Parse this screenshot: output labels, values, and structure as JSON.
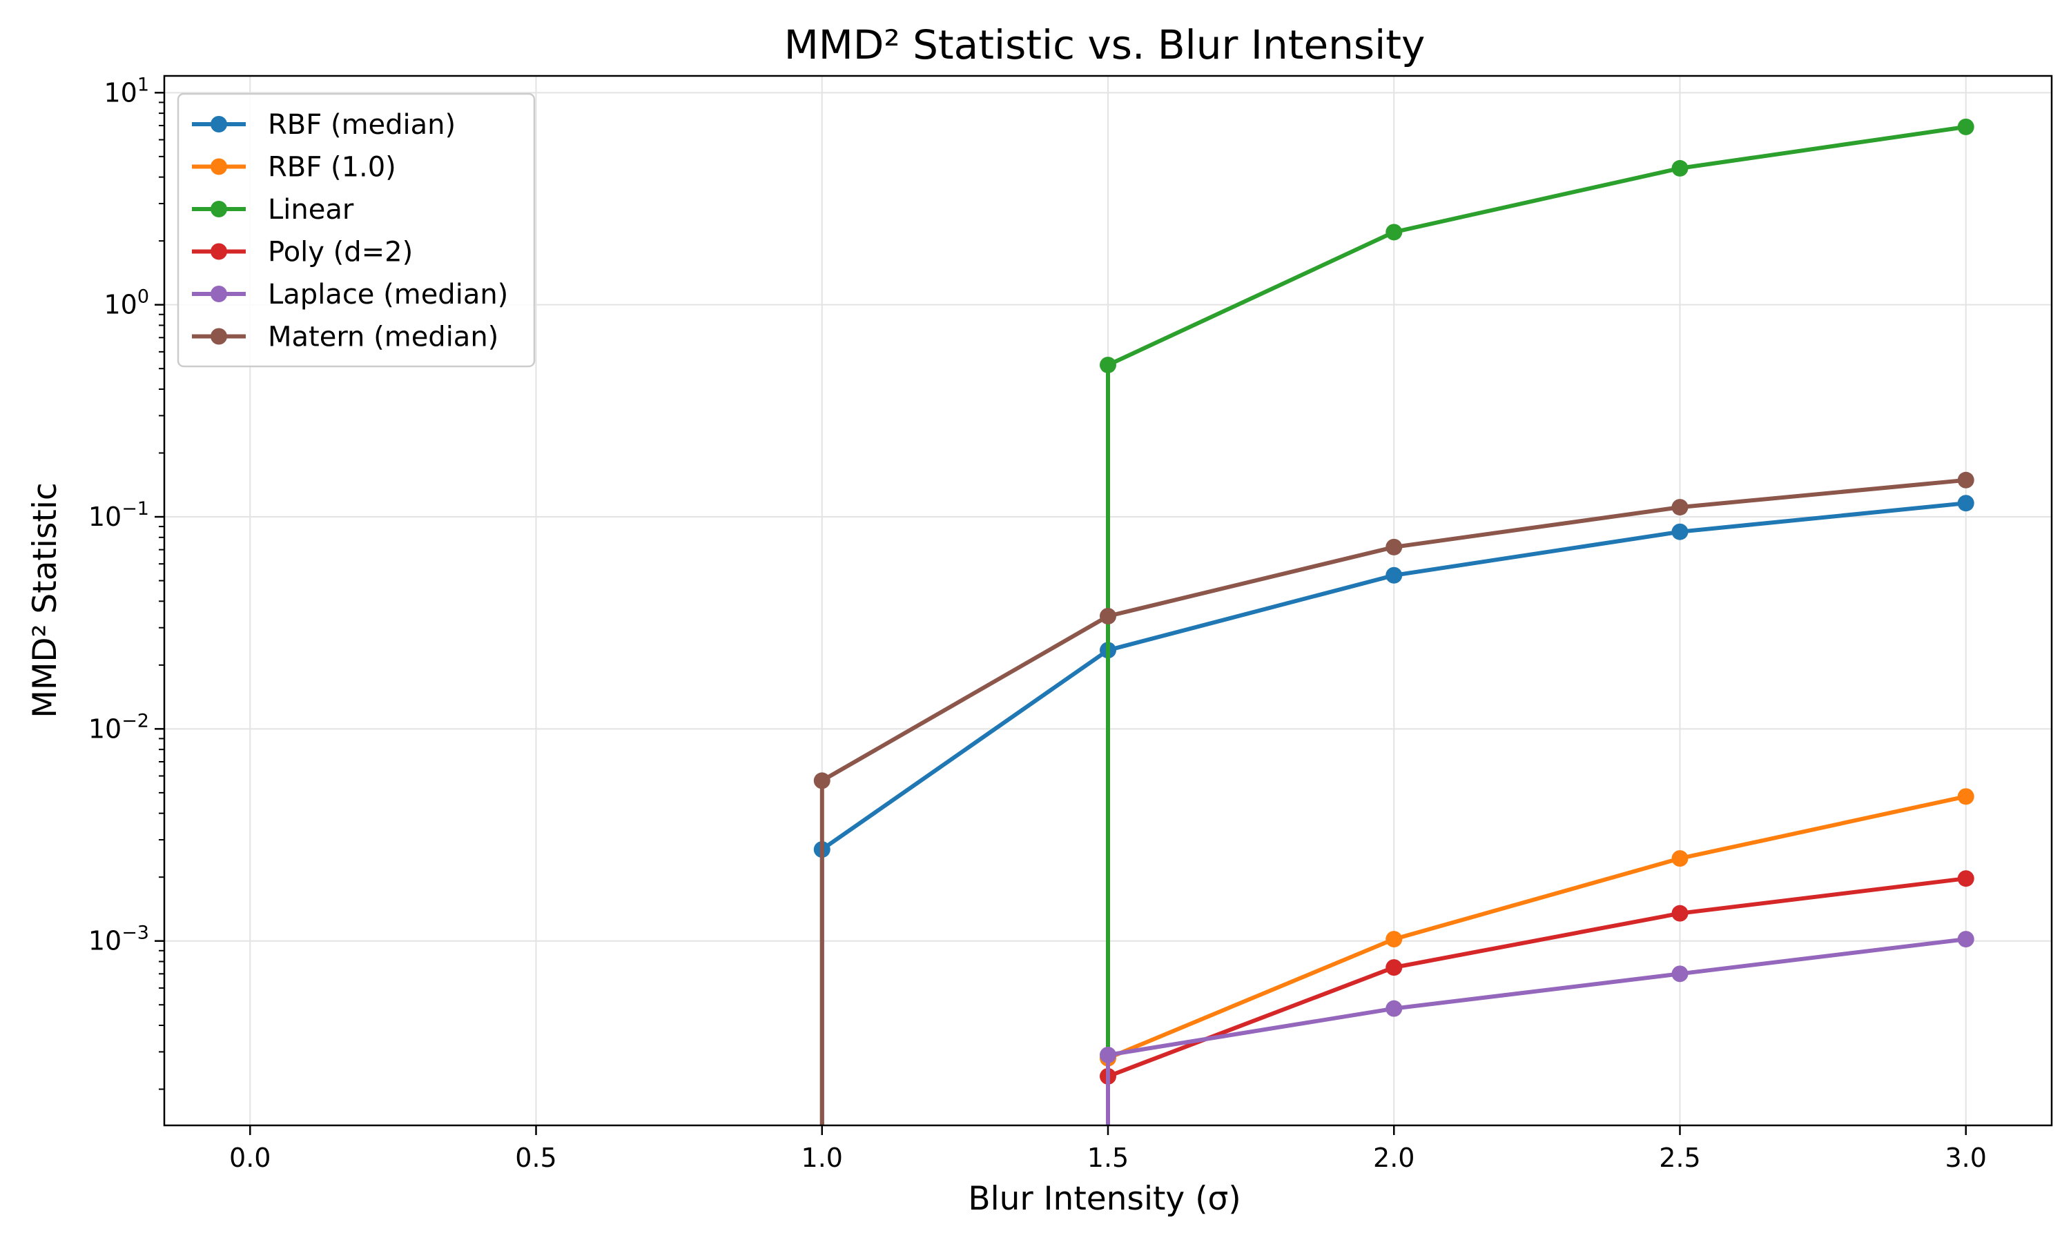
{
  "chart_data": {
    "type": "line",
    "title": "MMD² Statistic vs. Blur Intensity",
    "xlabel": "Blur Intensity (σ)",
    "ylabel": "MMD² Statistic",
    "yscale": "log",
    "xlim": [
      -0.15,
      3.15
    ],
    "ylim": [
      0.000135,
      12
    ],
    "grid": true,
    "legend_position": "top-left",
    "x_ticks": [
      {
        "value": 0.0,
        "label": "0.0"
      },
      {
        "value": 0.5,
        "label": "0.5"
      },
      {
        "value": 1.0,
        "label": "1.0"
      },
      {
        "value": 1.5,
        "label": "1.5"
      },
      {
        "value": 2.0,
        "label": "2.0"
      },
      {
        "value": 2.5,
        "label": "2.5"
      },
      {
        "value": 3.0,
        "label": "3.0"
      }
    ],
    "y_ticks": [
      {
        "value": 0.001,
        "base": "10",
        "exp": "−3"
      },
      {
        "value": 0.01,
        "base": "10",
        "exp": "−2"
      },
      {
        "value": 0.1,
        "base": "10",
        "exp": "−1"
      },
      {
        "value": 1,
        "base": "10",
        "exp": "0"
      },
      {
        "value": 10,
        "base": "10",
        "exp": "1"
      }
    ],
    "x": [
      0.0,
      0.5,
      1.0,
      1.5,
      2.0,
      2.5,
      3.0
    ],
    "series": [
      {
        "name": "RBF (median)",
        "color": "#1f77b4",
        "values": [
          null,
          null,
          0.0027,
          0.0235,
          0.053,
          0.085,
          0.116
        ]
      },
      {
        "name": "RBF (1.0)",
        "color": "#ff7f0e",
        "values": [
          null,
          null,
          null,
          0.00028,
          0.00102,
          0.00245,
          0.0048
        ]
      },
      {
        "name": "Linear",
        "color": "#2ca02c",
        "values": [
          null,
          null,
          null,
          0.52,
          2.2,
          4.4,
          6.9
        ]
      },
      {
        "name": "Poly (d=2)",
        "color": "#d62728",
        "values": [
          null,
          null,
          null,
          0.00023,
          0.00075,
          0.00135,
          0.00197
        ]
      },
      {
        "name": "Laplace (median)",
        "color": "#9467bd",
        "values": [
          null,
          null,
          null,
          0.00029,
          0.00048,
          0.0007,
          0.00102
        ]
      },
      {
        "name": "Matern (median)",
        "color": "#8c564b",
        "values": [
          null,
          null,
          0.0057,
          0.034,
          0.072,
          0.111,
          0.149
        ]
      }
    ]
  }
}
